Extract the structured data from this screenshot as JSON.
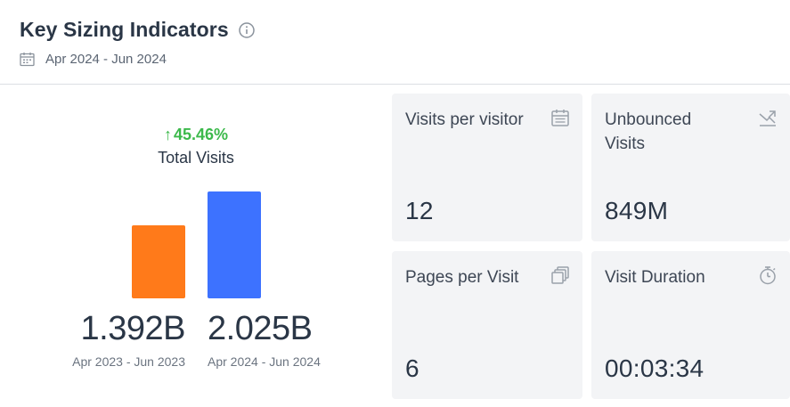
{
  "header": {
    "title": "Key Sizing Indicators",
    "date_range": "Apr 2024 - Jun 2024",
    "info_icon": "info-icon",
    "calendar_icon": "calendar-icon"
  },
  "total_visits": {
    "growth": "45.46%",
    "growth_direction": "up",
    "growth_color": "#3cb94b",
    "label": "Total Visits",
    "previous": {
      "value": "1.392B",
      "period": "Apr 2023 - Jun 2023",
      "color": "#ff7a1a"
    },
    "current": {
      "value": "2.025B",
      "period": "Apr 2024 - Jun 2024",
      "color": "#3d72ff"
    }
  },
  "chart_data": {
    "type": "bar",
    "categories": [
      "Apr 2023 - Jun 2023",
      "Apr 2024 - Jun 2024"
    ],
    "values": [
      1.392,
      2.025
    ],
    "title": "",
    "xlabel": "",
    "ylabel": "",
    "ylim": [
      0,
      2.025
    ]
  },
  "cards": [
    {
      "label": "Visits per visitor",
      "value": "12",
      "icon": "calendar-icon"
    },
    {
      "label": "Unbounced Visits",
      "value": "849M",
      "icon": "trend-arrow-icon"
    },
    {
      "label": "Pages per Visit",
      "value": "6",
      "icon": "pages-icon"
    },
    {
      "label": "Visit Duration",
      "value": "00:03:34",
      "icon": "stopwatch-icon"
    }
  ]
}
